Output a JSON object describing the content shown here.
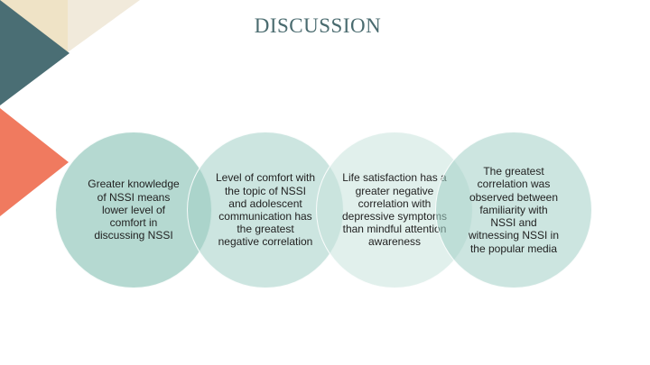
{
  "slide": {
    "title": "DISCUSSION"
  },
  "colors": {
    "teal_dark": "#4a6e74",
    "coral": "#f07a5f",
    "cream": "#efe6cf",
    "circle_teal": "#8fc6b9",
    "title": "#4a6b6f"
  },
  "findings": [
    {
      "text": "Greater knowledge of NSSI means lower level of comfort in discussing NSSI"
    },
    {
      "text": "Level of comfort with the topic of NSSI and adolescent communication has the greatest negative correlation"
    },
    {
      "text": "Life satisfaction has a greater negative correlation with depressive symptoms than mindful attention awareness"
    },
    {
      "text": "The greatest correlation was observed between familiarity with NSSI and witnessing NSSI in the popular media"
    }
  ]
}
